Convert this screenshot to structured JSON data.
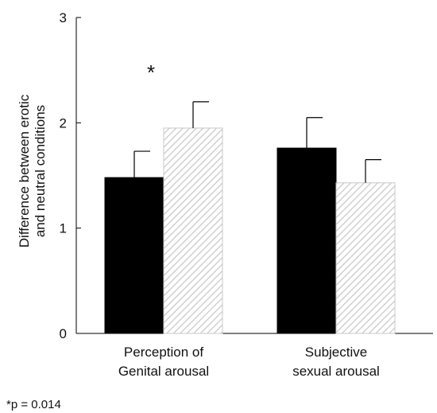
{
  "chart_data": {
    "type": "bar",
    "title": "",
    "xlabel": "",
    "ylabel_lines": [
      "Difference between erotic",
      "and neutral conditions"
    ],
    "ylim": [
      0,
      3
    ],
    "yticks": [
      0,
      1,
      2,
      3
    ],
    "grid": false,
    "legend": "none",
    "categories": [
      [
        "Perception of",
        "Genital arousal"
      ],
      [
        "Subjective",
        "sexual arousal"
      ]
    ],
    "series": [
      {
        "fill": "solid-black",
        "color": "#000000",
        "values": [
          1.48,
          1.76
        ],
        "error": [
          0.25,
          0.29
        ]
      },
      {
        "fill": "light-gray-hatched",
        "color": "#d4d4d4",
        "values": [
          1.95,
          1.43
        ],
        "error": [
          0.25,
          0.22
        ]
      }
    ],
    "annotations": [
      {
        "text": "*",
        "category_index": 0
      }
    ],
    "footnote": "*p = 0.014"
  }
}
